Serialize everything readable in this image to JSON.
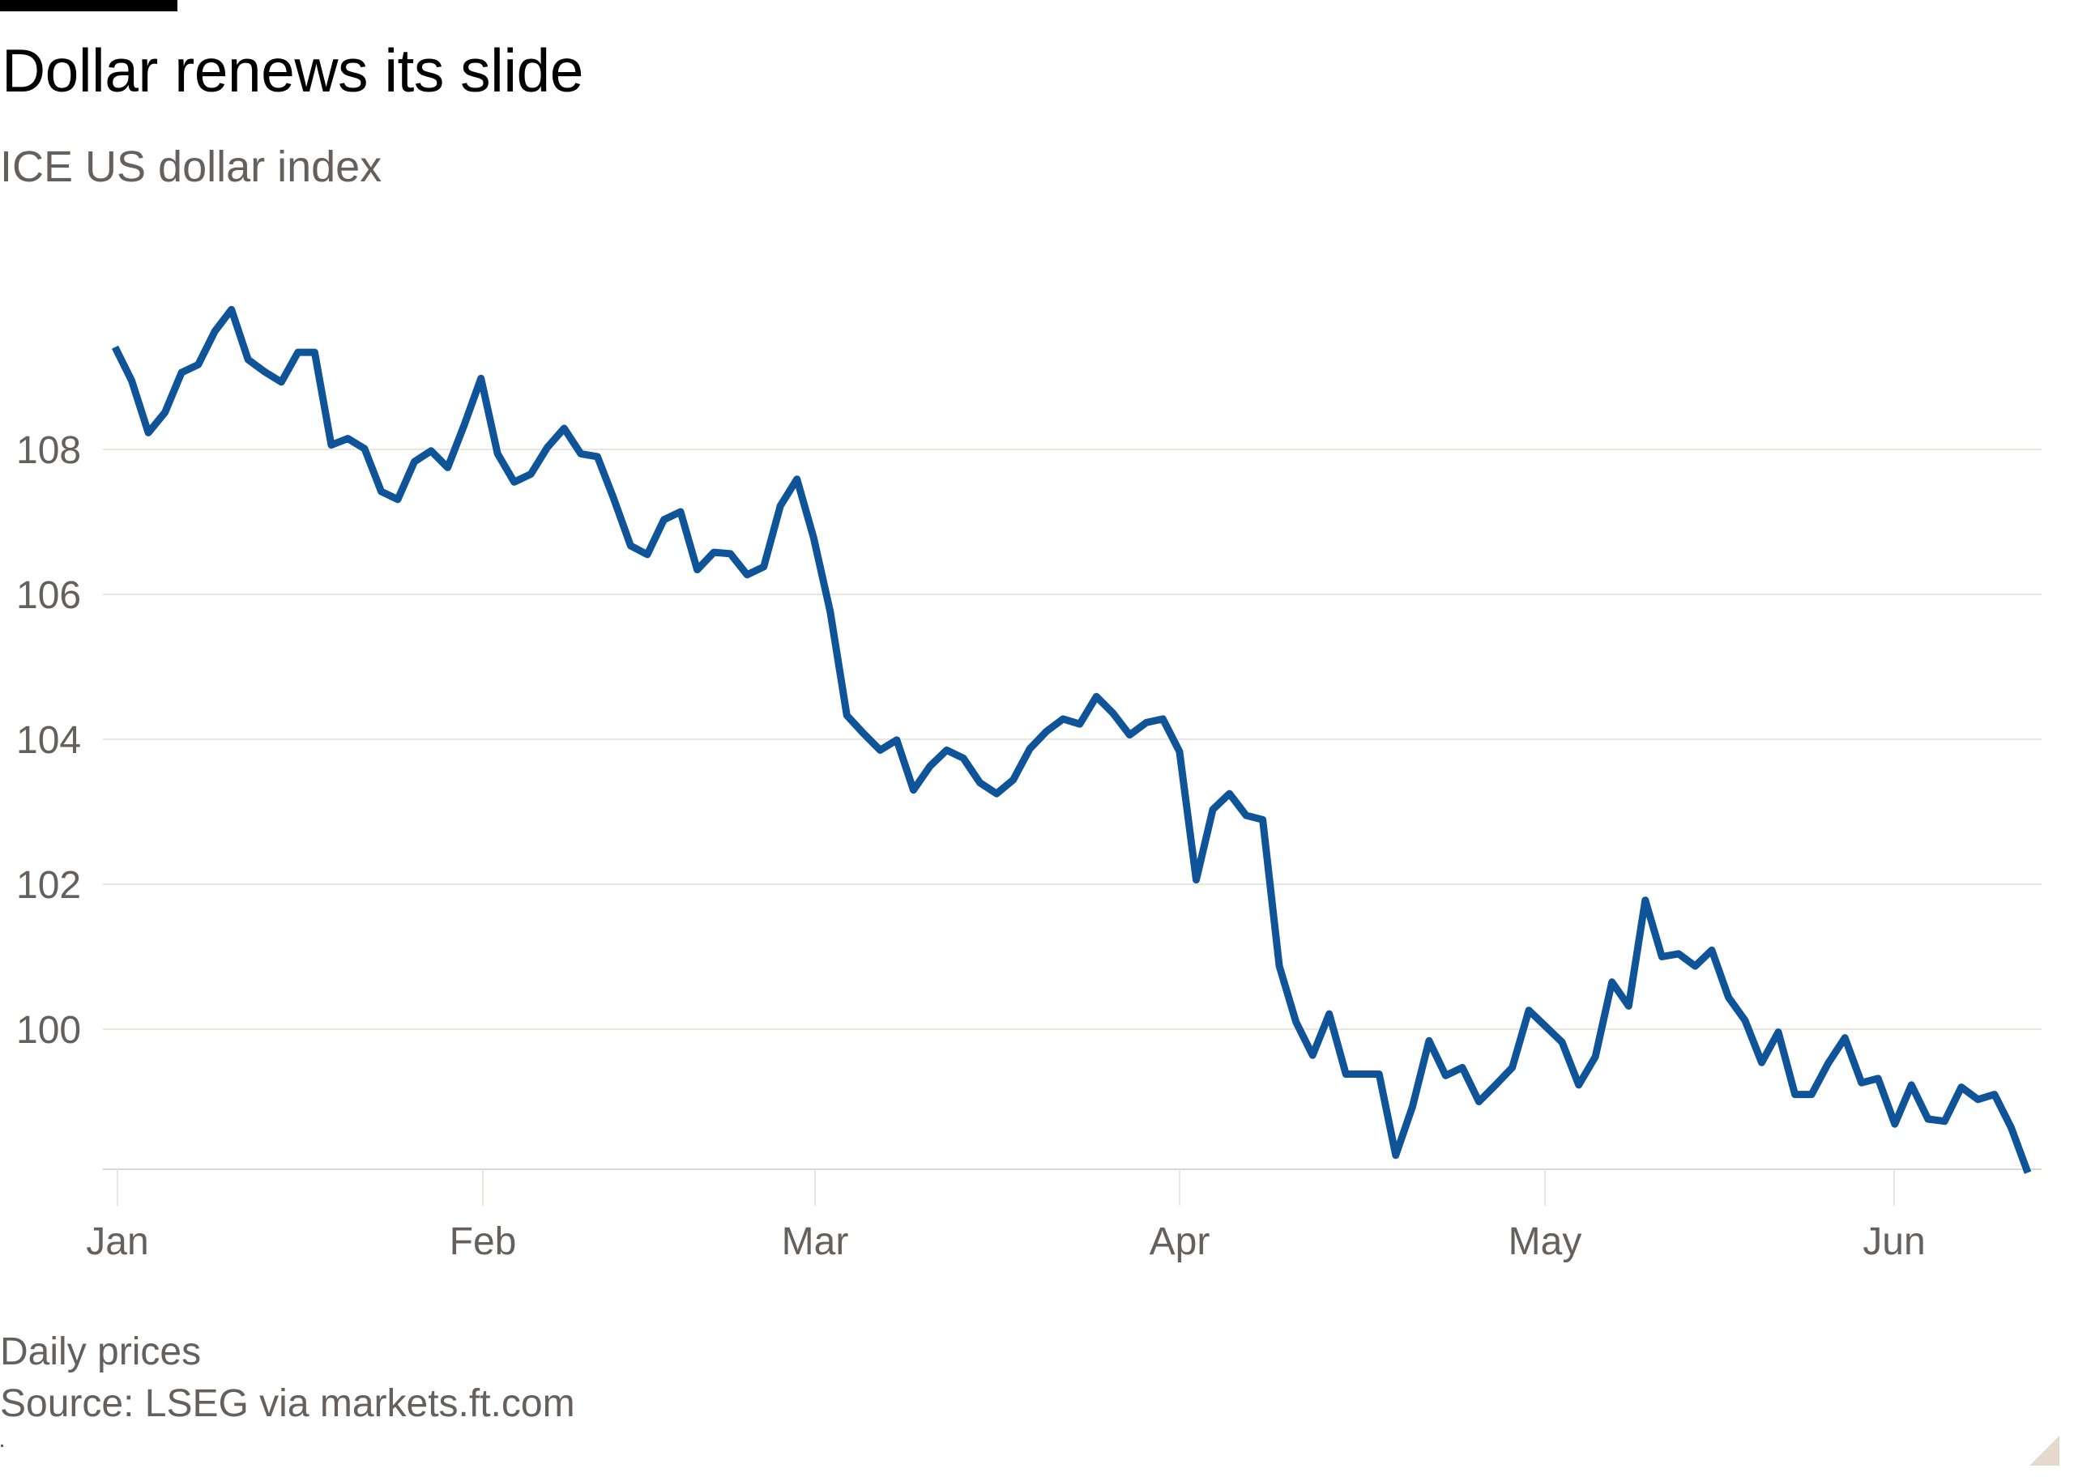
{
  "header": {
    "title": "Dollar renews its slide",
    "subtitle": "ICE US dollar index"
  },
  "footer": {
    "note": "Daily prices",
    "source": "Source: LSEG via markets.ft.com"
  },
  "colors": {
    "line": "#0f5499",
    "gridline": "#e9e5e1",
    "baseline": "#ddd6cf",
    "axis_text": "#66605c",
    "accent_bar": "#000000",
    "corner_mark": "#e5d9ce"
  },
  "chart_data": {
    "type": "line",
    "title": "Dollar renews its slide",
    "subtitle": "ICE US dollar index",
    "xlabel": "",
    "ylabel": "",
    "x_ticks": [
      "Jan",
      "Feb",
      "Mar",
      "Apr",
      "May",
      "Jun"
    ],
    "y_ticks": [
      100,
      102,
      104,
      106,
      108
    ],
    "ylim": [
      98.07,
      110.3
    ],
    "grid": true,
    "legend": null,
    "note": "Daily prices",
    "source": "Source: LSEG via markets.ft.com",
    "series": [
      {
        "name": "ICE US dollar index",
        "frequency": "daily",
        "values": [
          109.41,
          108.95,
          108.23,
          108.51,
          109.06,
          109.17,
          109.63,
          109.93,
          109.24,
          109.07,
          108.93,
          109.34,
          109.34,
          108.06,
          108.15,
          108.01,
          107.42,
          107.31,
          107.83,
          107.98,
          107.75,
          108.34,
          108.98,
          107.94,
          107.55,
          107.66,
          108.03,
          108.29,
          107.94,
          107.9,
          107.31,
          106.67,
          106.55,
          107.03,
          107.14,
          106.34,
          106.58,
          106.56,
          106.27,
          106.38,
          107.22,
          107.59,
          106.78,
          105.76,
          104.33,
          104.08,
          103.85,
          103.99,
          103.3,
          103.63,
          103.85,
          103.74,
          103.4,
          103.25,
          103.44,
          103.87,
          104.11,
          104.28,
          104.21,
          104.59,
          104.36,
          104.06,
          104.23,
          104.28,
          103.83,
          102.06,
          103.03,
          103.25,
          102.95,
          102.89,
          100.87,
          100.1,
          99.64,
          100.21,
          99.38,
          99.38,
          99.38,
          98.26,
          98.93,
          99.84,
          99.36,
          99.47,
          99.0,
          99.23,
          99.47,
          100.26,
          100.04,
          99.82,
          99.23,
          99.62,
          100.65,
          100.32,
          101.78,
          101.0,
          101.04,
          100.87,
          101.09,
          100.44,
          100.12,
          99.54,
          99.96,
          99.1,
          99.1,
          99.53,
          99.88,
          99.26,
          99.32,
          98.69,
          99.23,
          98.76,
          98.73,
          99.2,
          99.03,
          99.1,
          98.64,
          98.02
        ]
      }
    ]
  }
}
